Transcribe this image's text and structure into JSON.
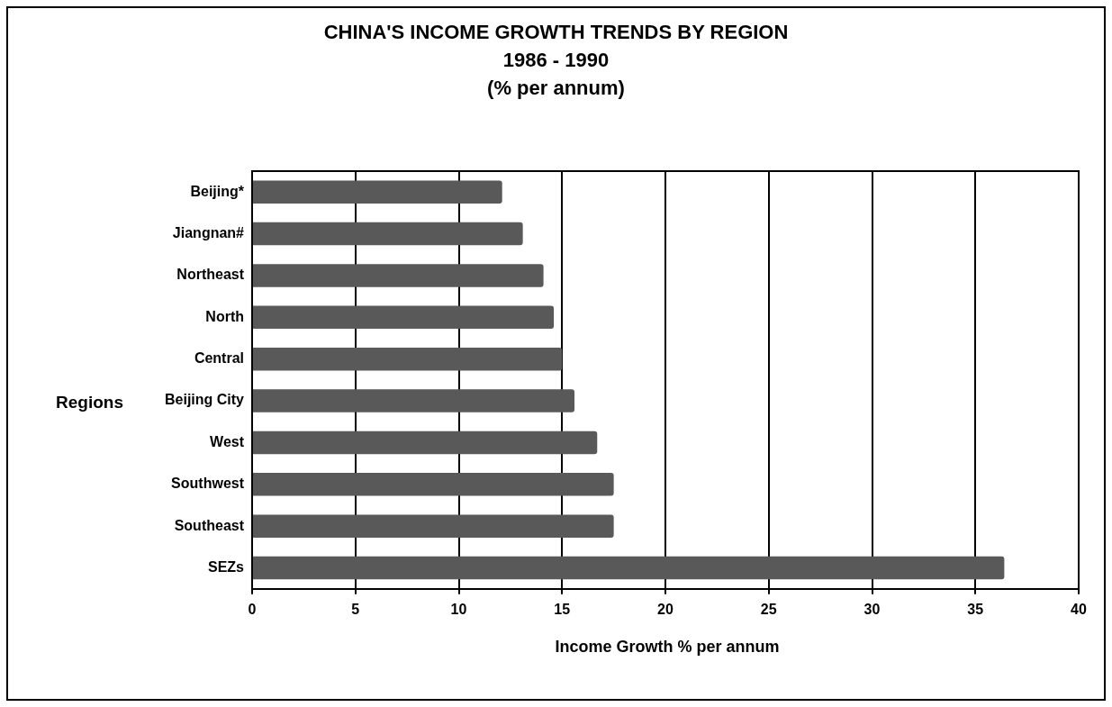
{
  "chart_data": {
    "type": "bar",
    "orientation": "horizontal",
    "title": "CHINA'S INCOME GROWTH TRENDS BY REGION",
    "subtitle": "1986 - 1990\n(% per annum)",
    "xlabel": "Income Growth % per annum",
    "ylabel": "Regions",
    "categories": [
      "Beijing*",
      "Jiangnan#",
      "Northeast",
      "North",
      "Central",
      "Beijing City",
      "West",
      "Southwest",
      "Southeast",
      "SEZs"
    ],
    "values": [
      12.1,
      13.1,
      14.1,
      14.6,
      15.0,
      15.6,
      16.7,
      17.5,
      17.5,
      36.4
    ],
    "color": "#595959",
    "xlim": [
      0,
      40
    ],
    "xticks": [
      0,
      5,
      10,
      15,
      20,
      25,
      30,
      35,
      40
    ],
    "grid": "x",
    "legend": false
  }
}
